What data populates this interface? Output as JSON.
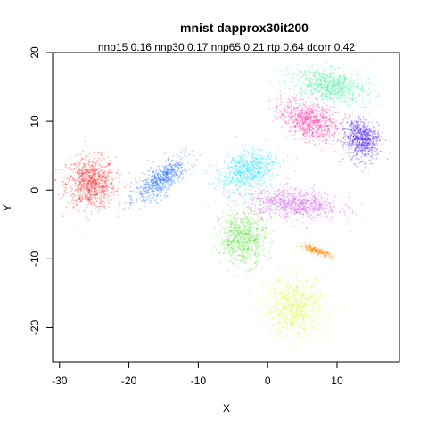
{
  "chart_data": {
    "type": "scatter",
    "title": "mnist dapprox30it200",
    "subtitle": "nnp15 0.16 nnp30 0.17 nnp65 0.21 rtp 0.64 dcorr 0.42",
    "xlabel": "X",
    "ylabel": "Y",
    "xlim": [
      -31,
      19
    ],
    "ylim": [
      -25,
      20
    ],
    "xticks": [
      -30,
      -20,
      -10,
      0,
      10
    ],
    "yticks": [
      -20,
      -10,
      0,
      10,
      20
    ],
    "grid": false,
    "legend": "none",
    "clusters": [
      {
        "color": "#ff0000",
        "center": [
          -25.5,
          1.0
        ],
        "spread": [
          3.2,
          3.4
        ],
        "count": 900
      },
      {
        "color": "#0055ff",
        "center": [
          -15.5,
          1.5
        ],
        "spread": [
          1.6,
          4.2
        ],
        "count": 650,
        "tilt": -0.9
      },
      {
        "color": "#00ddff",
        "center": [
          -3.0,
          2.8
        ],
        "spread": [
          4.0,
          2.6
        ],
        "count": 800,
        "tilt": 0.45
      },
      {
        "color": "#cc44ee",
        "center": [
          3.8,
          -2.0
        ],
        "spread": [
          6.0,
          2.0
        ],
        "count": 900,
        "tilt": -0.08
      },
      {
        "color": "#44dd22",
        "center": [
          -3.5,
          -7.0
        ],
        "spread": [
          3.0,
          3.6
        ],
        "count": 800
      },
      {
        "color": "#ff8800",
        "center": [
          7.0,
          -8.8
        ],
        "spread": [
          2.2,
          0.4
        ],
        "count": 260,
        "tilt": -0.35
      },
      {
        "color": "#ccff22",
        "center": [
          4.0,
          -17.0
        ],
        "spread": [
          4.0,
          4.0
        ],
        "count": 900
      },
      {
        "color": "#22ee88",
        "center": [
          9.0,
          15.2
        ],
        "spread": [
          5.0,
          2.2
        ],
        "count": 800,
        "tilt": -0.2
      },
      {
        "color": "#ff1199",
        "center": [
          6.0,
          10.0
        ],
        "spread": [
          4.0,
          2.4
        ],
        "count": 800,
        "tilt": -0.45
      },
      {
        "color": "#3300ee",
        "center": [
          13.5,
          7.5
        ],
        "spread": [
          2.2,
          2.8
        ],
        "count": 700,
        "tilt": 0.3
      }
    ]
  }
}
